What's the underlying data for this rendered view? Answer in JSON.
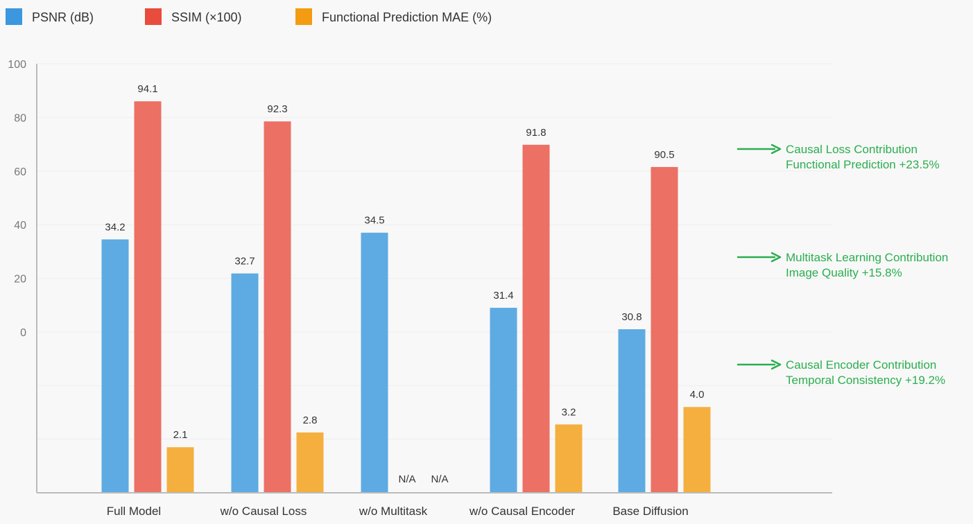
{
  "chart_data": {
    "type": "bar",
    "title": "",
    "xlabel": "",
    "ylabel": "",
    "ylim": [
      -60,
      100
    ],
    "yticks": [
      0,
      20,
      40,
      60,
      80,
      100
    ],
    "grid": true,
    "legend_position": "top-left",
    "categories": [
      "Full Model",
      "w/o Causal Loss",
      "w/o Multitask",
      "w/o Causal Encoder",
      "Base Diffusion"
    ],
    "series": [
      {
        "name": "PSNR (dB)",
        "color": "#5dabe2",
        "legend_color": "#3b97de",
        "values": [
          34.5,
          21.8,
          37.0,
          9.0,
          1.0
        ],
        "labels": [
          "34.2",
          "32.7",
          "34.5",
          "31.4",
          "30.8"
        ]
      },
      {
        "name": "SSIM (×100)",
        "color": "#ec7064",
        "legend_color": "#e84c3d",
        "values": [
          86.0,
          78.5,
          null,
          69.8,
          61.5
        ],
        "labels": [
          "94.1",
          "92.3",
          "N/A",
          "91.8",
          "90.5"
        ]
      },
      {
        "name": "Functional Prediction MAE (%)",
        "color": "#f5af3f",
        "legend_color": "#f39c12",
        "values": [
          -43.0,
          -37.5,
          null,
          -34.5,
          -28.0
        ],
        "labels": [
          "2.1",
          "2.8",
          "N/A",
          "3.2",
          "4.0"
        ]
      }
    ],
    "annotations": [
      {
        "line1": "Causal Loss Contribution",
        "line2": "Functional Prediction +23.5%",
        "color": "#2bae4f"
      },
      {
        "line1": "Multitask Learning Contribution",
        "line2": "Image Quality +15.8%",
        "color": "#2bae4f"
      },
      {
        "line1": "Causal Encoder Contribution",
        "line2": "Temporal Consistency +19.2%",
        "color": "#2bae4f"
      }
    ]
  }
}
